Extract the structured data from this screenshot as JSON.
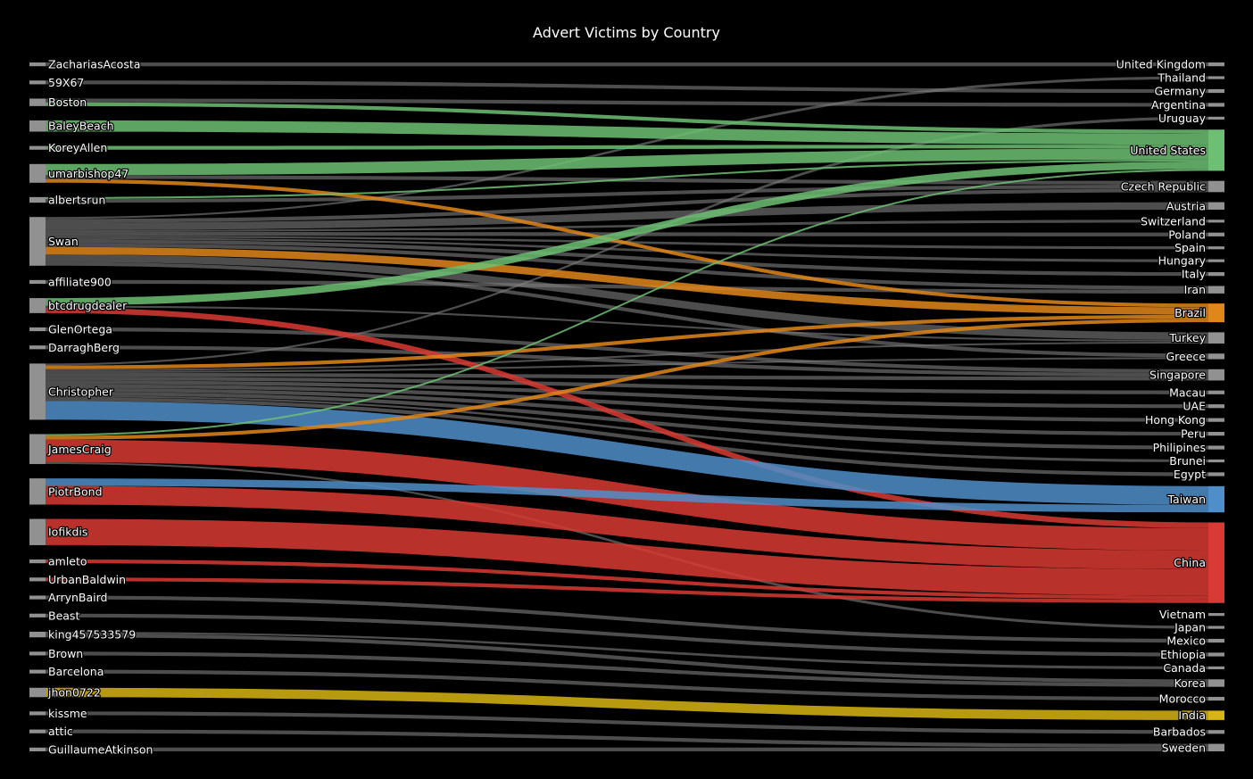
{
  "chart_data": {
    "type": "sankey",
    "title": "Advert Victims by Country",
    "sources": [
      "ZachariasAcosta",
      "59X67",
      "Boston",
      "BaleyBeach",
      "KoreyAllen",
      "umarbishop47",
      "albertsrun",
      "Swan",
      "affiliate900",
      "btcdrugdealer",
      "GlenOrtega",
      "DarraghBerg",
      "Christopher",
      "JamesCraig",
      "PiotrBond",
      "Iofikdis",
      "amleto",
      "UrbanBaldwin",
      "ArrynBaird",
      "Beast",
      "king457533579",
      "Brown",
      "Barcelona",
      "jhon0722",
      "kissme",
      "attic",
      "GuillaumeAtkinson"
    ],
    "targets": [
      "United Kingdom",
      "Thailand",
      "Germany",
      "Argentina",
      "Uruguay",
      "United States",
      "Czech Republic",
      "Austria",
      "Switzerland",
      "Poland",
      "Spain",
      "Hungary",
      "Italy",
      "Iran",
      "Brazil",
      "Turkey",
      "Greece",
      "Singapore",
      "Macau",
      "UAE",
      "Hong Kong",
      "Peru",
      "Philipines",
      "Brunei",
      "Egypt",
      "Taiwan",
      "China",
      "Vietnam",
      "Japan",
      "Mexico",
      "Ethiopia",
      "Canada",
      "Korea",
      "Morocco",
      "India",
      "Barbados",
      "Sweden"
    ],
    "node_values": {
      "ZachariasAcosta": 1,
      "59X67": 1,
      "Boston": 2,
      "BaleyBeach": 3,
      "KoreyAllen": 1,
      "umarbishop47": 5,
      "albertsrun": 1.5,
      "Swan": 13,
      "affiliate900": 1,
      "btcdrugdealer": 4,
      "GlenOrtega": 1,
      "DarraghBerg": 1,
      "Christopher": 15,
      "JamesCraig": 8,
      "PiotrBond": 7,
      "Iofikdis": 7,
      "amleto": 1,
      "UrbanBaldwin": 1,
      "ArrynBaird": 1,
      "Beast": 1,
      "king457533579": 1.5,
      "Brown": 1,
      "Barcelona": 1,
      "jhon0722": 2.5,
      "kissme": 1,
      "attic": 1,
      "GuillaumeAtkinson": 1
    },
    "links": [
      {
        "source": "ZachariasAcosta",
        "target": "United Kingdom",
        "value": 1
      },
      {
        "source": "59X67",
        "target": "Germany",
        "value": 1
      },
      {
        "source": "Boston",
        "target": "United States",
        "value": 1
      },
      {
        "source": "Boston",
        "target": "Argentina",
        "value": 1
      },
      {
        "source": "BaleyBeach",
        "target": "United States",
        "value": 3
      },
      {
        "source": "KoreyAllen",
        "target": "United States",
        "value": 1
      },
      {
        "source": "umarbishop47",
        "target": "United States",
        "value": 3
      },
      {
        "source": "umarbishop47",
        "target": "Czech Republic",
        "value": 1
      },
      {
        "source": "umarbishop47",
        "target": "Brazil",
        "value": 1
      },
      {
        "source": "albertsrun",
        "target": "United States",
        "value": 0.5
      },
      {
        "source": "albertsrun",
        "target": "Czech Republic",
        "value": 1
      },
      {
        "source": "Swan",
        "target": "Thailand",
        "value": 0.5
      },
      {
        "source": "Swan",
        "target": "Czech Republic",
        "value": 1
      },
      {
        "source": "Swan",
        "target": "Austria",
        "value": 2
      },
      {
        "source": "Swan",
        "target": "Switzerland",
        "value": 0.5
      },
      {
        "source": "Swan",
        "target": "Poland",
        "value": 1
      },
      {
        "source": "Swan",
        "target": "Spain",
        "value": 0.5
      },
      {
        "source": "Swan",
        "target": "Hungary",
        "value": 0.5
      },
      {
        "source": "Swan",
        "target": "Italy",
        "value": 1
      },
      {
        "source": "Swan",
        "target": "Iran",
        "value": 1
      },
      {
        "source": "Swan",
        "target": "Brazil",
        "value": 2
      },
      {
        "source": "Swan",
        "target": "Turkey",
        "value": 2
      },
      {
        "source": "Swan",
        "target": "Greece",
        "value": 1
      },
      {
        "source": "affiliate900",
        "target": "Iran",
        "value": 1
      },
      {
        "source": "btcdrugdealer",
        "target": "United States",
        "value": 2
      },
      {
        "source": "btcdrugdealer",
        "target": "Turkey",
        "value": 0.5
      },
      {
        "source": "btcdrugdealer",
        "target": "China",
        "value": 1.5
      },
      {
        "source": "GlenOrtega",
        "target": "Singapore",
        "value": 1
      },
      {
        "source": "DarraghBerg",
        "target": "Singapore",
        "value": 1
      },
      {
        "source": "Christopher",
        "target": "Brazil",
        "value": 1
      },
      {
        "source": "Christopher",
        "target": "Uruguay",
        "value": 0.5
      },
      {
        "source": "Christopher",
        "target": "Turkey",
        "value": 0.5
      },
      {
        "source": "Christopher",
        "target": "Greece",
        "value": 0.5
      },
      {
        "source": "Christopher",
        "target": "Singapore",
        "value": 1
      },
      {
        "source": "Christopher",
        "target": "Macau",
        "value": 1
      },
      {
        "source": "Christopher",
        "target": "UAE",
        "value": 1
      },
      {
        "source": "Christopher",
        "target": "Hong Kong",
        "value": 1
      },
      {
        "source": "Christopher",
        "target": "Peru",
        "value": 1
      },
      {
        "source": "Christopher",
        "target": "Philipines",
        "value": 1
      },
      {
        "source": "Christopher",
        "target": "Brunei",
        "value": 0.5
      },
      {
        "source": "Christopher",
        "target": "Egypt",
        "value": 1
      },
      {
        "source": "Christopher",
        "target": "Taiwan",
        "value": 5
      },
      {
        "source": "JamesCraig",
        "target": "United States",
        "value": 0.5
      },
      {
        "source": "JamesCraig",
        "target": "Brazil",
        "value": 1
      },
      {
        "source": "JamesCraig",
        "target": "China",
        "value": 6
      },
      {
        "source": "JamesCraig",
        "target": "Japan",
        "value": 0.5
      },
      {
        "source": "PiotrBond",
        "target": "Taiwan",
        "value": 2
      },
      {
        "source": "PiotrBond",
        "target": "China",
        "value": 5
      },
      {
        "source": "Iofikdis",
        "target": "China",
        "value": 7
      },
      {
        "source": "amleto",
        "target": "China",
        "value": 1
      },
      {
        "source": "UrbanBaldwin",
        "target": "China",
        "value": 1
      },
      {
        "source": "ArrynBaird",
        "target": "Mexico",
        "value": 1
      },
      {
        "source": "Beast",
        "target": "Ethiopia",
        "value": 1
      },
      {
        "source": "king457533579",
        "target": "Canada",
        "value": 0.5
      },
      {
        "source": "king457533579",
        "target": "Korea",
        "value": 1
      },
      {
        "source": "Brown",
        "target": "Korea",
        "value": 1
      },
      {
        "source": "Barcelona",
        "target": "Morocco",
        "value": 1
      },
      {
        "source": "jhon0722",
        "target": "India",
        "value": 2.5
      },
      {
        "source": "kissme",
        "target": "Barbados",
        "value": 1
      },
      {
        "source": "attic",
        "target": "Sweden",
        "value": 1
      },
      {
        "source": "GuillaumeAtkinson",
        "target": "Sweden",
        "value": 1
      }
    ],
    "colors": {
      "background": "#000000",
      "node": "#aaaaaa",
      "default_link": "#808080",
      "green": "#6dbf73",
      "orange": "#e0861a",
      "red": "#d93a33",
      "blue": "#4f8fc9",
      "yellow": "#d7b512"
    },
    "target_node_colors": {
      "United States": "green",
      "Brazil": "orange",
      "Taiwan": "blue",
      "China": "red",
      "India": "yellow"
    }
  }
}
